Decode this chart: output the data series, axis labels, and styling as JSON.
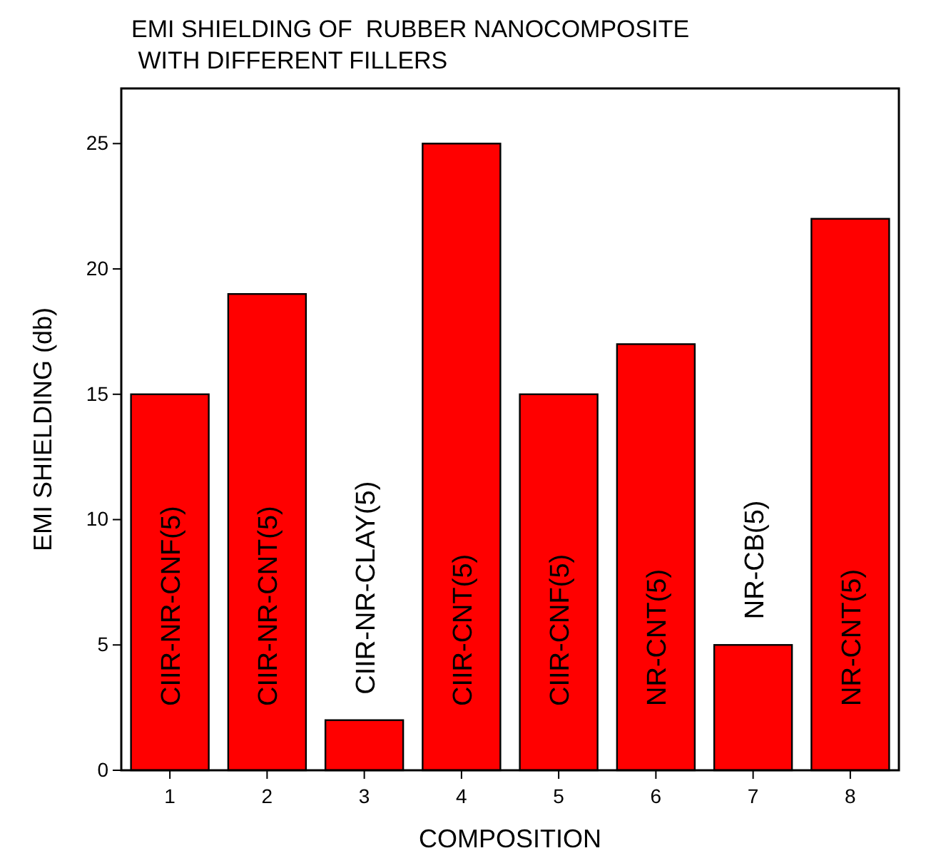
{
  "chart_data": {
    "type": "bar",
    "title": "EMI SHIELDING OF  RUBBER NANOCOMPOSITE\n WITH DIFFERENT FILLERS",
    "xlabel": "COMPOSITION",
    "ylabel": "EMI SHIELDING (db)",
    "categories": [
      "1",
      "2",
      "3",
      "4",
      "5",
      "6",
      "7",
      "8"
    ],
    "values": [
      15,
      19,
      2,
      25,
      15,
      17,
      5,
      22
    ],
    "color": "#ff0000",
    "ylim": [
      0,
      27.2
    ],
    "yticks": [
      0,
      5,
      10,
      15,
      20,
      25
    ],
    "grid": false,
    "annotations": [
      "CIIR-NR-CNF(5)",
      "CIIR-NR-CNT(5)",
      "CIIR-NR-CLAY(5)",
      "CIIR-CNT(5)",
      "CIIR-CNF(5)",
      "NR-CNT(5)",
      "NR-CB(5)",
      "NR-CNT(5)"
    ]
  }
}
